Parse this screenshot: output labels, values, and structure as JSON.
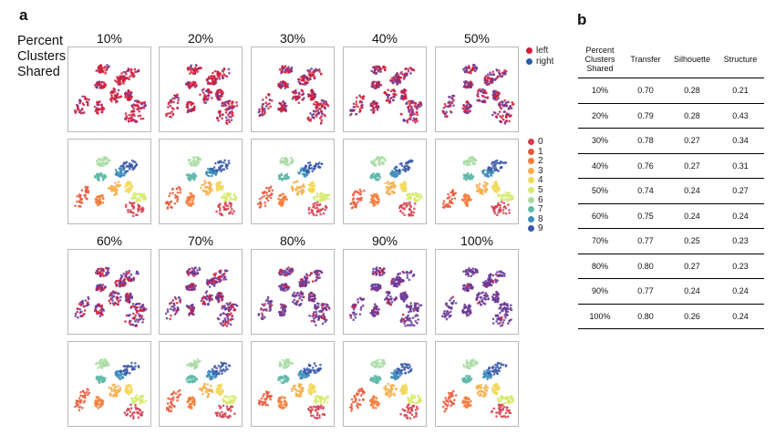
{
  "panel_a_label": "a",
  "panel_b_label": "b",
  "row_label": [
    "Percent",
    "Clusters",
    "Shared"
  ],
  "percent_headers_top": [
    "10%",
    "20%",
    "30%",
    "40%",
    "50%"
  ],
  "percent_headers_bottom": [
    "60%",
    "70%",
    "80%",
    "90%",
    "100%"
  ],
  "side_legend": [
    {
      "label": "left",
      "color": "#d01e3c"
    },
    {
      "label": "right",
      "color": "#2f5ca8"
    }
  ],
  "cluster_legend": [
    {
      "label": "0",
      "color": "#d53e4f"
    },
    {
      "label": "1",
      "color": "#e85a3a"
    },
    {
      "label": "2",
      "color": "#f47d3a"
    },
    {
      "label": "3",
      "color": "#f6b04b"
    },
    {
      "label": "4",
      "color": "#f2d85a"
    },
    {
      "label": "5",
      "color": "#d6ea6b"
    },
    {
      "label": "6",
      "color": "#a9dca3"
    },
    {
      "label": "7",
      "color": "#5fbaa8"
    },
    {
      "label": "8",
      "color": "#3f8dbb"
    },
    {
      "label": "9",
      "color": "#3a58a8"
    }
  ],
  "purple_color": "#6a3a96",
  "table": {
    "headers": [
      [
        "Percent",
        "Clusters",
        "Shared"
      ],
      [
        "Transfer"
      ],
      [
        "Silhouette"
      ],
      [
        "Structure"
      ]
    ],
    "rows": [
      [
        "10%",
        "0.70",
        "0.28",
        "0.21"
      ],
      [
        "20%",
        "0.79",
        "0.28",
        "0.43"
      ],
      [
        "30%",
        "0.78",
        "0.27",
        "0.34"
      ],
      [
        "40%",
        "0.76",
        "0.27",
        "0.31"
      ],
      [
        "50%",
        "0.74",
        "0.24",
        "0.27"
      ],
      [
        "60%",
        "0.75",
        "0.24",
        "0.24"
      ],
      [
        "70%",
        "0.77",
        "0.25",
        "0.23"
      ],
      [
        "80%",
        "0.80",
        "0.27",
        "0.23"
      ],
      [
        "90%",
        "0.77",
        "0.24",
        "0.24"
      ],
      [
        "100%",
        "0.80",
        "0.26",
        "0.24"
      ]
    ]
  },
  "shared_fractions": [
    0.1,
    0.2,
    0.3,
    0.4,
    0.5,
    0.6,
    0.7,
    0.8,
    0.9,
    1.0
  ]
}
